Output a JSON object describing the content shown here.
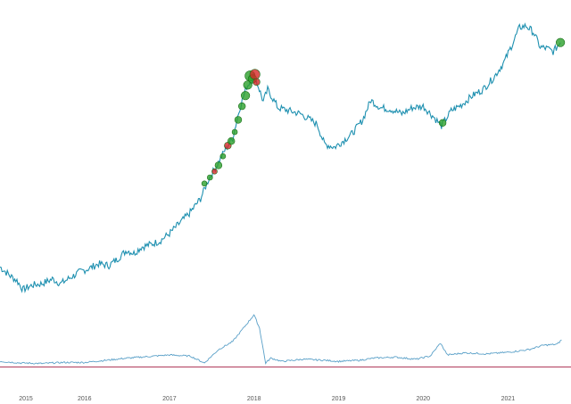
{
  "colors": {
    "price_line": "#1e90b0",
    "indicator_line": "#5aa0c8",
    "baseline": "#b03a5a",
    "marker_green": "#2ca02c",
    "marker_green_stroke": "#1a6e1a",
    "marker_red": "#d62728",
    "background": "#ffffff"
  },
  "chart_data": [
    {
      "type": "line",
      "title": "",
      "xlabel": "",
      "ylabel": "",
      "x_ticks": [
        "2015",
        "2016",
        "2017",
        "2018",
        "2019",
        "2020",
        "2021"
      ],
      "xlim": [
        "2015-01-01",
        "2021-09-30"
      ],
      "ylim": [
        0,
        100
      ],
      "grid": false,
      "legend": "none",
      "series": [
        {
          "values_note_free": true,
          "points": [
            [
              "2015-01-01",
              15.5
            ],
            [
              "2015-02-15",
              12.5
            ],
            [
              "2015-03-15",
              11.0
            ],
            [
              "2015-04-10",
              8.0
            ],
            [
              "2015-05-20",
              9.5
            ],
            [
              "2015-07-01",
              10.0
            ],
            [
              "2015-08-15",
              11.5
            ],
            [
              "2015-09-20",
              10.0
            ],
            [
              "2015-11-01",
              12.0
            ],
            [
              "2015-12-15",
              14.0
            ],
            [
              "2016-01-20",
              15.0
            ],
            [
              "2016-03-01",
              16.5
            ],
            [
              "2016-04-15",
              16.0
            ],
            [
              "2016-05-20",
              18.0
            ],
            [
              "2016-07-01",
              21.0
            ],
            [
              "2016-08-01",
              20.0
            ],
            [
              "2016-09-01",
              22.0
            ],
            [
              "2016-10-15",
              23.0
            ],
            [
              "2016-11-20",
              24.0
            ],
            [
              "2017-01-01",
              26.5
            ],
            [
              "2017-02-15",
              30.0
            ],
            [
              "2017-04-01",
              33.5
            ],
            [
              "2017-05-15",
              38.0
            ],
            [
              "2017-06-20",
              44.5
            ],
            [
              "2017-08-01",
              50.0
            ],
            [
              "2017-09-01",
              54.5
            ],
            [
              "2017-10-01",
              58.0
            ],
            [
              "2017-11-01",
              68.0
            ],
            [
              "2017-12-01",
              75.0
            ],
            [
              "2018-01-01",
              78.5
            ],
            [
              "2018-01-20",
              75.0
            ],
            [
              "2018-02-10",
              70.0
            ],
            [
              "2018-03-01",
              74.0
            ],
            [
              "2018-04-15",
              68.0
            ],
            [
              "2018-06-01",
              67.0
            ],
            [
              "2018-07-20",
              66.0
            ],
            [
              "2018-09-01",
              64.0
            ],
            [
              "2018-10-01",
              62.5
            ],
            [
              "2018-11-01",
              56.0
            ],
            [
              "2018-12-15",
              55.0
            ],
            [
              "2019-01-20",
              57.0
            ],
            [
              "2019-03-01",
              59.5
            ],
            [
              "2019-04-15",
              64.0
            ],
            [
              "2019-05-20",
              70.5
            ],
            [
              "2019-07-01",
              68.0
            ],
            [
              "2019-08-15",
              67.5
            ],
            [
              "2019-10-01",
              66.0
            ],
            [
              "2019-11-15",
              68.0
            ],
            [
              "2020-01-01",
              68.5
            ],
            [
              "2020-02-15",
              65.0
            ],
            [
              "2020-03-20",
              62.0
            ],
            [
              "2020-05-01",
              67.0
            ],
            [
              "2020-06-15",
              69.0
            ],
            [
              "2020-08-01",
              72.0
            ],
            [
              "2020-09-15",
              74.0
            ],
            [
              "2020-11-01",
              78.0
            ],
            [
              "2020-12-15",
              83.0
            ],
            [
              "2021-01-20",
              89.0
            ],
            [
              "2021-02-20",
              94.5
            ],
            [
              "2021-03-20",
              95.0
            ],
            [
              "2021-04-20",
              93.0
            ],
            [
              "2021-05-20",
              88.0
            ],
            [
              "2021-06-20",
              87.5
            ],
            [
              "2021-07-15",
              86.5
            ],
            [
              "2021-08-15",
              89.5
            ]
          ]
        }
      ],
      "markers": [
        {
          "x": "2017-06-01",
          "y": 43.0,
          "kind": "buy",
          "size": 2
        },
        {
          "x": "2017-06-25",
          "y": 45.0,
          "kind": "buy",
          "size": 2
        },
        {
          "x": "2017-07-15",
          "y": 47.0,
          "kind": "sell",
          "size": 2
        },
        {
          "x": "2017-08-01",
          "y": 49.0,
          "kind": "buy",
          "size": 3
        },
        {
          "x": "2017-08-20",
          "y": 52.0,
          "kind": "buy",
          "size": 2
        },
        {
          "x": "2017-09-10",
          "y": 55.5,
          "kind": "sell",
          "size": 3
        },
        {
          "x": "2017-09-25",
          "y": 57.0,
          "kind": "buy",
          "size": 3
        },
        {
          "x": "2017-10-10",
          "y": 60.0,
          "kind": "buy",
          "size": 2
        },
        {
          "x": "2017-10-25",
          "y": 64.0,
          "kind": "buy",
          "size": 3
        },
        {
          "x": "2017-11-10",
          "y": 68.5,
          "kind": "buy",
          "size": 3
        },
        {
          "x": "2017-11-25",
          "y": 72.0,
          "kind": "buy",
          "size": 4
        },
        {
          "x": "2017-12-05",
          "y": 75.5,
          "kind": "buy",
          "size": 4
        },
        {
          "x": "2017-12-15",
          "y": 78.5,
          "kind": "buy",
          "size": 5
        },
        {
          "x": "2017-12-25",
          "y": 77.5,
          "kind": "buy",
          "size": 4
        },
        {
          "x": "2018-01-05",
          "y": 79.0,
          "kind": "sell",
          "size": 5
        },
        {
          "x": "2018-01-12",
          "y": 76.5,
          "kind": "sell",
          "size": 3
        },
        {
          "x": "2020-03-25",
          "y": 63.0,
          "kind": "buy",
          "size": 3
        },
        {
          "x": "2021-08-15",
          "y": 89.5,
          "kind": "buy",
          "size": 4
        }
      ]
    },
    {
      "type": "line",
      "title": "",
      "xlabel": "",
      "ylabel": "",
      "ylim": [
        0,
        100
      ],
      "grid": false,
      "legend": "none",
      "baseline": 0,
      "series": [
        {
          "points": [
            [
              "2015-01-01",
              8
            ],
            [
              "2015-04-01",
              5
            ],
            [
              "2015-07-01",
              4
            ],
            [
              "2015-10-01",
              6
            ],
            [
              "2016-01-01",
              6
            ],
            [
              "2016-04-01",
              10
            ],
            [
              "2016-07-01",
              14
            ],
            [
              "2016-10-01",
              17
            ],
            [
              "2017-01-01",
              20
            ],
            [
              "2017-04-01",
              18
            ],
            [
              "2017-06-01",
              5
            ],
            [
              "2017-08-01",
              30
            ],
            [
              "2017-10-01",
              45
            ],
            [
              "2017-12-01",
              78
            ],
            [
              "2018-01-01",
              95
            ],
            [
              "2018-01-25",
              70
            ],
            [
              "2018-02-20",
              5
            ],
            [
              "2018-03-15",
              14
            ],
            [
              "2018-05-01",
              8
            ],
            [
              "2018-08-01",
              12
            ],
            [
              "2018-11-01",
              10
            ],
            [
              "2019-01-01",
              8
            ],
            [
              "2019-04-01",
              10
            ],
            [
              "2019-06-01",
              14
            ],
            [
              "2019-09-01",
              16
            ],
            [
              "2019-12-01",
              12
            ],
            [
              "2020-02-01",
              18
            ],
            [
              "2020-03-15",
              42
            ],
            [
              "2020-04-15",
              20
            ],
            [
              "2020-07-01",
              24
            ],
            [
              "2020-10-01",
              22
            ],
            [
              "2021-01-01",
              25
            ],
            [
              "2021-04-01",
              30
            ],
            [
              "2021-06-01",
              38
            ],
            [
              "2021-08-01",
              40
            ],
            [
              "2021-08-20",
              48
            ]
          ]
        }
      ]
    }
  ]
}
